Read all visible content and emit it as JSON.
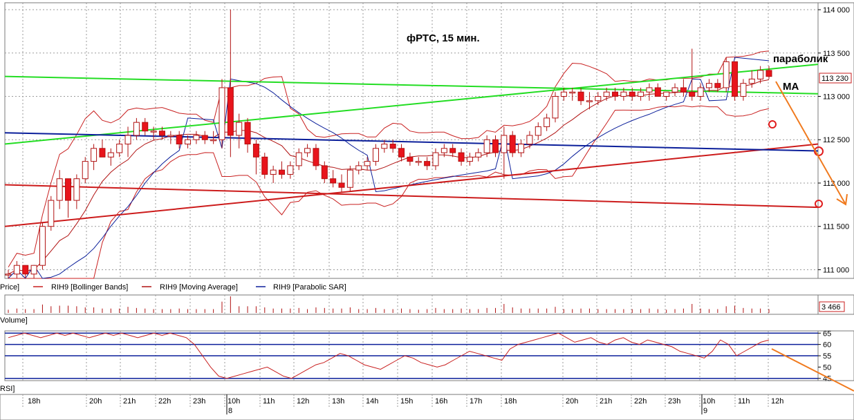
{
  "chart_data": {
    "type": "candlestick",
    "title": "фРТС,   15 мин.",
    "instrument": "RIH9",
    "colors": {
      "up": "#ffffff",
      "down": "#e8141c",
      "outline": "#b01010",
      "bollinger": "#c81e1e",
      "ma": "#b01010",
      "sar": "#0a1e9a",
      "green": "#22dd22",
      "red_line": "#cc1a1a",
      "blue_line": "#0a1e9a",
      "orange": "#f07a1e",
      "rsi_line": "#c81e1e",
      "rsi_level": "#0a1e9a"
    },
    "price_axis": {
      "ticks": [
        111000,
        111500,
        112000,
        112500,
        113000,
        113500,
        114000
      ],
      "tick_labels": [
        "111 000",
        "111 500",
        "112 000",
        "112 500",
        "113 000",
        "113 500",
        "114 000"
      ],
      "range": [
        110900,
        114080
      ],
      "last_price_label": "113 230",
      "last_price": 113230
    },
    "legend": [
      {
        "label": "Price]"
      },
      {
        "label": "RIH9 [Bollinger Bands]"
      },
      {
        "label": "RIH9 [Moving Average]"
      },
      {
        "label": "RIH9 [Parabolic SAR]"
      }
    ],
    "volume": {
      "label": "Volume]",
      "last_label": "3 466"
    },
    "rsi": {
      "label": "RSI]",
      "ticks": [
        45,
        50,
        55,
        60,
        65
      ],
      "range": [
        44,
        66
      ],
      "levels": [
        45,
        55,
        60,
        65
      ],
      "values": [
        63,
        64,
        65,
        64,
        63,
        64,
        65,
        64,
        65,
        64,
        63,
        64,
        65,
        64,
        65,
        64,
        63,
        64,
        65,
        64,
        65,
        64,
        63,
        60,
        55,
        50,
        46,
        45,
        46,
        47,
        48,
        49,
        50,
        48,
        46,
        45,
        47,
        49,
        51,
        52,
        54,
        56,
        55,
        53,
        51,
        50,
        49,
        51,
        53,
        55,
        54,
        52,
        51,
        50,
        51,
        53,
        55,
        57,
        56,
        55,
        54,
        53,
        58,
        60,
        61,
        62,
        63,
        64,
        65,
        63,
        61,
        62,
        63,
        61,
        60,
        62,
        63,
        61,
        60,
        62,
        61,
        60,
        59,
        57,
        56,
        55,
        54,
        57,
        62,
        60,
        55,
        57,
        59,
        61,
        62
      ]
    },
    "time_axis": {
      "labels": [
        "18h",
        "20h",
        "21h",
        "22h",
        "23h",
        "10h",
        "11h",
        "12h",
        "13h",
        "14h",
        "15h",
        "16h",
        "17h",
        "18h",
        "20h",
        "21h",
        "22h",
        "23h",
        "10h",
        "11h",
        "12h"
      ],
      "day_labels": [
        "8",
        "9"
      ]
    },
    "candles": [
      [
        110950,
        111000,
        110900,
        110950
      ],
      [
        110950,
        111100,
        110900,
        111050
      ],
      [
        111050,
        111050,
        110900,
        110950
      ],
      [
        110950,
        111050,
        110900,
        111050
      ],
      [
        111050,
        111550,
        111000,
        111500
      ],
      [
        111500,
        111850,
        111450,
        111800
      ],
      [
        111800,
        112150,
        111700,
        112050
      ],
      [
        112050,
        112050,
        111600,
        111800
      ],
      [
        111800,
        112100,
        111700,
        112050
      ],
      [
        112050,
        112300,
        112000,
        112250
      ],
      [
        112250,
        112450,
        112150,
        112400
      ],
      [
        112400,
        112500,
        112300,
        112300
      ],
      [
        112300,
        112400,
        112200,
        112350
      ],
      [
        112350,
        112500,
        112300,
        112450
      ],
      [
        112450,
        112650,
        112300,
        112550
      ],
      [
        112550,
        112750,
        112500,
        112700
      ],
      [
        112700,
        112750,
        112550,
        112600
      ],
      [
        112600,
        112650,
        112500,
        112600
      ],
      [
        112600,
        112650,
        112500,
        112550
      ],
      [
        112550,
        112600,
        112450,
        112550
      ],
      [
        112550,
        112600,
        112400,
        112450
      ],
      [
        112450,
        112550,
        112400,
        112500
      ],
      [
        112500,
        112600,
        112450,
        112550
      ],
      [
        112550,
        112600,
        112450,
        112500
      ],
      [
        112500,
        112600,
        112450,
        112500
      ],
      [
        112500,
        113200,
        112400,
        113100
      ],
      [
        113100,
        114000,
        112300,
        112550
      ],
      [
        112550,
        112800,
        112400,
        112700
      ],
      [
        112700,
        112750,
        112350,
        112450
      ],
      [
        112450,
        112500,
        112100,
        112300
      ],
      [
        112300,
        112350,
        112050,
        112100
      ],
      [
        112100,
        112200,
        112000,
        112150
      ],
      [
        112150,
        112250,
        112050,
        112100
      ],
      [
        112100,
        112250,
        112050,
        112200
      ],
      [
        112200,
        112400,
        112150,
        112350
      ],
      [
        112350,
        112450,
        112300,
        112400
      ],
      [
        112400,
        112450,
        112150,
        112200
      ],
      [
        112200,
        112250,
        112000,
        112050
      ],
      [
        112050,
        112150,
        111950,
        112000
      ],
      [
        112000,
        112100,
        111900,
        111950
      ],
      [
        111950,
        112200,
        111900,
        112150
      ],
      [
        112150,
        112250,
        112100,
        112200
      ],
      [
        112200,
        112300,
        112150,
        112250
      ],
      [
        112250,
        112450,
        112200,
        112400
      ],
      [
        112400,
        112500,
        112350,
        112450
      ],
      [
        112450,
        112500,
        112350,
        112400
      ],
      [
        112400,
        112450,
        112250,
        112300
      ],
      [
        112300,
        112350,
        112200,
        112250
      ],
      [
        112250,
        112300,
        112200,
        112250
      ],
      [
        112250,
        112300,
        112150,
        112200
      ],
      [
        112200,
        112400,
        112150,
        112350
      ],
      [
        112350,
        112450,
        112300,
        112400
      ],
      [
        112400,
        112450,
        112300,
        112350
      ],
      [
        112350,
        112400,
        112200,
        112250
      ],
      [
        112250,
        112350,
        112200,
        112300
      ],
      [
        112300,
        112400,
        112250,
        112350
      ],
      [
        112350,
        112550,
        112300,
        112500
      ],
      [
        112500,
        112550,
        112300,
        112350
      ],
      [
        112350,
        112650,
        112050,
        112550
      ],
      [
        112550,
        112600,
        112300,
        112350
      ],
      [
        112350,
        112500,
        112300,
        112450
      ],
      [
        112450,
        112600,
        112400,
        112550
      ],
      [
        112550,
        112700,
        112500,
        112650
      ],
      [
        112650,
        112800,
        112600,
        112750
      ],
      [
        112750,
        113050,
        112700,
        113000
      ],
      [
        113000,
        113100,
        112950,
        113050
      ],
      [
        113050,
        113100,
        112950,
        113050
      ],
      [
        113050,
        113100,
        112900,
        112950
      ],
      [
        112950,
        113050,
        112850,
        112950
      ],
      [
        112950,
        113050,
        112900,
        113000
      ],
      [
        113000,
        113100,
        112950,
        113050
      ],
      [
        113050,
        113100,
        112950,
        113000
      ],
      [
        113000,
        113100,
        112950,
        113050
      ],
      [
        113050,
        113100,
        112950,
        113000
      ],
      [
        113000,
        113100,
        112950,
        113050
      ],
      [
        113050,
        113150,
        112950,
        113100
      ],
      [
        113100,
        113150,
        113000,
        113000
      ],
      [
        113000,
        113050,
        112950,
        113050
      ],
      [
        113050,
        113150,
        113000,
        113100
      ],
      [
        113100,
        113200,
        113000,
        113050
      ],
      [
        113050,
        113550,
        112950,
        113000
      ],
      [
        113000,
        113150,
        112950,
        113100
      ],
      [
        113100,
        113200,
        113050,
        113150
      ],
      [
        113150,
        113200,
        113050,
        113100
      ],
      [
        113100,
        113450,
        113050,
        113400
      ],
      [
        113400,
        113400,
        112950,
        113000
      ],
      [
        113000,
        113200,
        112950,
        113150
      ],
      [
        113150,
        113300,
        113100,
        113200
      ],
      [
        113200,
        113350,
        113150,
        113300
      ],
      [
        113300,
        113350,
        113200,
        113230
      ]
    ]
  }
}
